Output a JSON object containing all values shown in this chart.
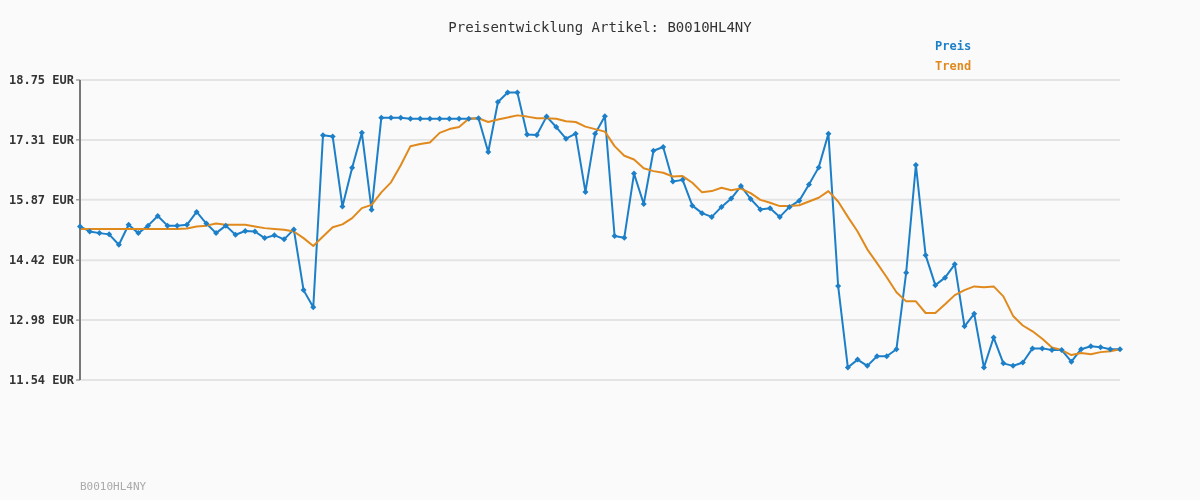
{
  "chart_data": {
    "type": "line",
    "title": "Preisentwicklung Artikel: B0010HL4NY",
    "categories": [
      null,
      null,
      null,
      null,
      null,
      null,
      null,
      null,
      null,
      null,
      null,
      null,
      null,
      null,
      null,
      null,
      null,
      null,
      null,
      null,
      null,
      null,
      null,
      null,
      null,
      null,
      null,
      null,
      null,
      null,
      null,
      null,
      null,
      null,
      null,
      null,
      null,
      null,
      null,
      null,
      null,
      null,
      null,
      null,
      null,
      null,
      null,
      null,
      null,
      null,
      null,
      null,
      null,
      null,
      null,
      null,
      null,
      null,
      null,
      null,
      null,
      null,
      null,
      null,
      null,
      null,
      null,
      null,
      null,
      null,
      null,
      null,
      null,
      null,
      null,
      null,
      null,
      null,
      null,
      null,
      null,
      null,
      null,
      null,
      null,
      null,
      null,
      null,
      null,
      null,
      null,
      null,
      null,
      null,
      null,
      null,
      null,
      null,
      null,
      null,
      null,
      null,
      null,
      null,
      null,
      null,
      null,
      null
    ],
    "series": [
      {
        "name": "Preis",
        "color": "#1c7fc8",
        "marker": "diamond",
        "values": [
          15.23,
          15.11,
          15.07,
          15.04,
          14.79,
          15.27,
          15.07,
          15.25,
          15.48,
          15.25,
          15.25,
          15.27,
          15.58,
          15.3,
          15.07,
          15.25,
          15.03,
          15.12,
          15.11,
          14.95,
          15.02,
          14.92,
          15.16,
          13.7,
          13.29,
          17.42,
          17.39,
          15.71,
          16.64,
          17.48,
          15.63,
          17.84,
          17.84,
          17.84,
          17.82,
          17.82,
          17.82,
          17.82,
          17.82,
          17.82,
          17.82,
          17.83,
          17.02,
          18.22,
          18.45,
          18.45,
          17.44,
          17.43,
          17.87,
          17.62,
          17.34,
          17.46,
          16.06,
          17.46,
          17.88,
          15.0,
          14.96,
          16.5,
          15.77,
          17.05,
          17.14,
          16.31,
          16.35,
          15.73,
          15.55,
          15.46,
          15.7,
          15.9,
          16.2,
          15.89,
          15.64,
          15.67,
          15.46,
          15.7,
          15.85,
          16.24,
          16.65,
          17.46,
          13.8,
          11.84,
          12.03,
          11.88,
          12.11,
          12.11,
          12.28,
          14.12,
          16.71,
          14.54,
          13.82,
          14.0,
          14.32,
          12.83,
          13.13,
          11.84,
          12.56,
          11.94,
          11.88,
          11.96,
          12.3,
          12.3,
          12.26,
          12.26,
          11.98,
          12.28,
          12.35,
          12.33,
          12.28,
          12.28
        ]
      },
      {
        "name": "Trend",
        "color": "#e08a1e",
        "marker": "none",
        "values": [
          15.17,
          15.17,
          15.17,
          15.17,
          15.17,
          15.17,
          15.17,
          15.17,
          15.17,
          15.17,
          15.17,
          15.18,
          15.23,
          15.25,
          15.3,
          15.27,
          15.27,
          15.27,
          15.23,
          15.19,
          15.17,
          15.15,
          15.11,
          14.95,
          14.76,
          14.99,
          15.21,
          15.28,
          15.43,
          15.67,
          15.75,
          16.05,
          16.29,
          16.7,
          17.16,
          17.21,
          17.25,
          17.48,
          17.57,
          17.62,
          17.82,
          17.83,
          17.74,
          17.8,
          17.85,
          17.9,
          17.87,
          17.83,
          17.83,
          17.82,
          17.76,
          17.74,
          17.63,
          17.57,
          17.51,
          17.16,
          16.93,
          16.84,
          16.63,
          16.56,
          16.52,
          16.43,
          16.44,
          16.28,
          16.05,
          16.08,
          16.16,
          16.1,
          16.14,
          16.03,
          15.87,
          15.8,
          15.72,
          15.72,
          15.74,
          15.83,
          15.92,
          16.08,
          15.83,
          15.46,
          15.11,
          14.68,
          14.35,
          14.01,
          13.65,
          13.43,
          13.43,
          13.15,
          13.15,
          13.36,
          13.58,
          13.7,
          13.79,
          13.77,
          13.79,
          13.55,
          13.08,
          12.85,
          12.71,
          12.53,
          12.32,
          12.26,
          12.14,
          12.19,
          12.16,
          12.21,
          12.23,
          12.28
        ]
      }
    ],
    "ylim": [
      11.54,
      18.75
    ],
    "yticks": [
      {
        "value": 11.54,
        "label": "11.54 EUR"
      },
      {
        "value": 12.98,
        "label": "12.98 EUR"
      },
      {
        "value": 14.42,
        "label": "14.42 EUR"
      },
      {
        "value": 15.87,
        "label": "15.87 EUR"
      },
      {
        "value": 17.31,
        "label": "17.31 EUR"
      },
      {
        "value": 18.75,
        "label": "18.75 EUR"
      }
    ],
    "grid": "y",
    "legend": "top right",
    "tick_labels": "y",
    "line_style": "solid",
    "annotations": [
      "B0010HL4NY"
    ]
  }
}
